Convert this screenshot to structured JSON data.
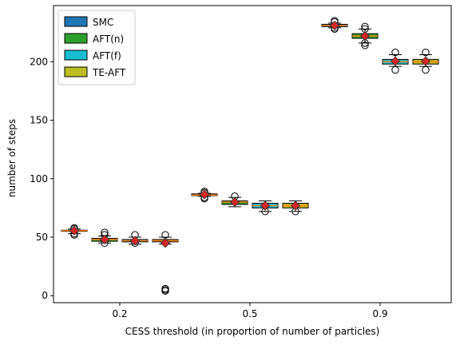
{
  "chart_data": {
    "type": "box",
    "title": "",
    "xlabel": "CESS threshold (in proportion of number of particles)",
    "ylabel": "number of steps",
    "ylim": [
      -6,
      248
    ],
    "yticks": [
      0,
      50,
      100,
      150,
      200
    ],
    "categories": [
      "0.2",
      "0.5",
      "0.9"
    ],
    "grid": false,
    "legend_position": "top-left",
    "series": [
      {
        "name": "SMC",
        "color": "#1f77b4",
        "boxes": [
          {
            "low": 53,
            "q1": 55,
            "median": 55.5,
            "q3": 56,
            "high": 57,
            "mean": 55.5,
            "outliers": [
              58,
              57,
              53,
              52
            ]
          },
          {
            "low": 85,
            "q1": 85.5,
            "median": 86,
            "q3": 87,
            "high": 87.5,
            "mean": 86.5,
            "outliers": [
              89,
              88,
              84,
              83
            ]
          },
          {
            "low": 229,
            "q1": 230,
            "median": 231,
            "q3": 232,
            "high": 233,
            "mean": 231,
            "outliers": [
              235,
              234,
              229,
              228
            ]
          }
        ]
      },
      {
        "name": "AFT(n)",
        "color": "#2ca02c",
        "boxes": [
          {
            "low": 45,
            "q1": 46.5,
            "median": 48,
            "q3": 49,
            "high": 51,
            "mean": 48,
            "outliers": [
              54,
              52,
              45
            ]
          },
          {
            "low": 76,
            "q1": 78,
            "median": 80,
            "q3": 81,
            "high": 84,
            "mean": 80,
            "outliers": [
              85
            ]
          },
          {
            "low": 216,
            "q1": 220,
            "median": 222,
            "q3": 224,
            "high": 228,
            "mean": 222,
            "outliers": [
              230,
              228,
              216,
              214
            ]
          }
        ]
      },
      {
        "name": "AFT(f)",
        "color": "#17becf",
        "boxes": [
          {
            "low": 44,
            "q1": 46,
            "median": 47,
            "q3": 48,
            "high": 50,
            "mean": 47,
            "outliers": [
              52,
              45
            ]
          },
          {
            "low": 72,
            "q1": 75,
            "median": 77,
            "q3": 79,
            "high": 81,
            "mean": 77,
            "outliers": [
              72
            ]
          },
          {
            "low": 196,
            "q1": 198,
            "median": 200,
            "q3": 202,
            "high": 206,
            "mean": 200.5,
            "outliers": [
              208,
              193
            ]
          }
        ]
      },
      {
        "name": "TE-AFT",
        "color": "#bcbd22",
        "boxes": [
          {
            "low": 44,
            "q1": 46,
            "median": 47,
            "q3": 48,
            "high": 50,
            "mean": 45,
            "outliers": [
              52,
              6,
              5,
              4
            ]
          },
          {
            "low": 72,
            "q1": 75,
            "median": 77,
            "q3": 79,
            "high": 81,
            "mean": 77,
            "outliers": [
              72
            ]
          },
          {
            "low": 196,
            "q1": 198,
            "median": 200,
            "q3": 202,
            "high": 206,
            "mean": 200.5,
            "outliers": [
              208,
              193
            ]
          }
        ]
      }
    ],
    "median_color": "#ff7f0e",
    "mean_marker_color": "#d62728"
  }
}
